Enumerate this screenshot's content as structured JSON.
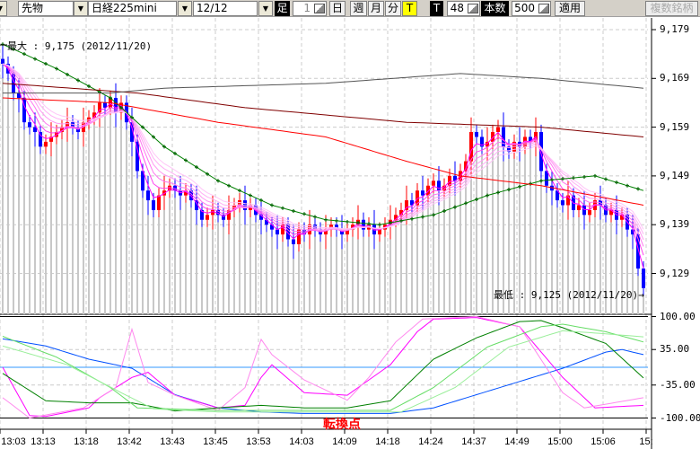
{
  "toolbar": {
    "market": "先物",
    "symbol": "日経225mini",
    "contract": "12/12",
    "bar_label": "足",
    "bar_count": "1",
    "day": "日",
    "week": "週",
    "month": "月",
    "minute": "分",
    "tick": "T",
    "t_label": "T",
    "t_value": "48",
    "count_label": "本数",
    "count_value": "500",
    "apply": "適用",
    "multi": "複数銘柄",
    "tick_active_color": "#ffff00"
  },
  "chart_data": {
    "type": "candlestick",
    "price_axis": {
      "ticks": [
        "9,179",
        "9,169",
        "9,159",
        "9,149",
        "9,139",
        "9,129"
      ],
      "values": [
        9179,
        9169,
        9159,
        9149,
        9139,
        9129
      ]
    },
    "max_label": "最大 : 9,175 (2012/11/20)",
    "min_label": "最低 : 9,125 (2012/11/20)→",
    "time_labels": [
      "13:03",
      "13:13",
      "13:18",
      "13:42",
      "13:43",
      "13:45",
      "13:53",
      "14:03",
      "14:09",
      "14:18",
      "14:24",
      "14:37",
      "14:49",
      "15:00",
      "15:06",
      "15:"
    ],
    "closes": [
      9172,
      9170,
      9166,
      9165,
      9160,
      9159,
      9158,
      9155,
      9156,
      9157,
      9158,
      9159,
      9160,
      9159,
      9158,
      9160,
      9161,
      9162,
      9164,
      9163,
      9165,
      9162,
      9164,
      9160,
      9156,
      9150,
      9146,
      9144,
      9142,
      9145,
      9146,
      9147,
      9146,
      9145,
      9146,
      9144,
      9142,
      9140,
      9141,
      9142,
      9141,
      9140,
      9142,
      9143,
      9144,
      9142,
      9143,
      9141,
      9140,
      9139,
      9138,
      9137,
      9139,
      9136,
      9135,
      9138,
      9137,
      9139,
      9138,
      9137,
      9138,
      9139,
      9138,
      9137,
      9138,
      9139,
      9140,
      9138,
      9139,
      9137,
      9138,
      9139,
      9140,
      9141,
      9142,
      9144,
      9143,
      9146,
      9145,
      9147,
      9148,
      9146,
      9147,
      9149,
      9148,
      9150,
      9152,
      9158,
      9157,
      9155,
      9156,
      9158,
      9159,
      9155,
      9154,
      9156,
      9155,
      9157,
      9156,
      9158,
      9150,
      9147,
      9146,
      9144,
      9143,
      9145,
      9142,
      9143,
      9141,
      9142,
      9144,
      9143,
      9141,
      9142,
      9140,
      9141,
      9138,
      9137,
      9130,
      9126
    ],
    "up_color": "#ff0000",
    "down_color": "#0000ff",
    "averages": [
      {
        "color": "#008000",
        "points": [
          [
            0,
            9176
          ],
          [
            10,
            9171
          ],
          [
            20,
            9165
          ],
          [
            30,
            9155
          ],
          [
            40,
            9148
          ],
          [
            50,
            9143
          ],
          [
            60,
            9140
          ],
          [
            70,
            9139
          ],
          [
            80,
            9141
          ],
          [
            90,
            9145
          ],
          [
            100,
            9148
          ],
          [
            110,
            9149
          ],
          [
            119,
            9146
          ]
        ]
      },
      {
        "color": "#ff0000",
        "points": [
          [
            0,
            9165
          ],
          [
            20,
            9164
          ],
          [
            40,
            9160
          ],
          [
            60,
            9157
          ],
          [
            75,
            9152
          ],
          [
            85,
            9149
          ],
          [
            100,
            9147
          ],
          [
            119,
            9143
          ]
        ]
      },
      {
        "color": "#800000",
        "points": [
          [
            0,
            9168
          ],
          [
            25,
            9166
          ],
          [
            45,
            9163
          ],
          [
            75,
            9160
          ],
          [
            100,
            9159
          ],
          [
            119,
            9157
          ]
        ]
      },
      {
        "color": "#555555",
        "points": [
          [
            0,
            9166
          ],
          [
            20,
            9166
          ],
          [
            30,
            9167
          ],
          [
            60,
            9168
          ],
          [
            85,
            9170
          ],
          [
            100,
            9169
          ],
          [
            119,
            9167
          ]
        ]
      }
    ],
    "ribbon_periods": [
      3,
      5,
      7,
      9,
      11,
      13
    ],
    "oscillator": {
      "ticks": [
        "100.00",
        "35.00",
        "-35.00",
        "-100.00"
      ],
      "values": [
        100,
        35,
        -35,
        -100
      ],
      "signal_label": "転換点",
      "series": [
        {
          "color": "#0050ff",
          "points": [
            [
              0,
              56
            ],
            [
              8,
              42
            ],
            [
              16,
              16
            ],
            [
              24,
              -2
            ],
            [
              32,
              -54
            ],
            [
              40,
              -80
            ],
            [
              48,
              -88
            ],
            [
              56,
              -91
            ],
            [
              72,
              -91
            ],
            [
              80,
              -80
            ],
            [
              88,
              -54
            ],
            [
              96,
              -28
            ],
            [
              104,
              -2
            ],
            [
              112,
              30
            ],
            [
              115,
              35
            ],
            [
              119,
              25
            ]
          ]
        },
        {
          "color": "#ff00ff",
          "points": [
            [
              0,
              0
            ],
            [
              5,
              -95
            ],
            [
              8,
              -97
            ],
            [
              16,
              -80
            ],
            [
              18,
              -60
            ],
            [
              24,
              -20
            ],
            [
              27,
              -10
            ],
            [
              32,
              -55
            ],
            [
              40,
              -80
            ],
            [
              45,
              -75
            ],
            [
              48,
              -20
            ],
            [
              50,
              5
            ],
            [
              56,
              -50
            ],
            [
              64,
              -55
            ],
            [
              72,
              5
            ],
            [
              77,
              70
            ],
            [
              80,
              95
            ],
            [
              88,
              98
            ],
            [
              96,
              80
            ],
            [
              102,
              5
            ],
            [
              104,
              -20
            ],
            [
              110,
              -80
            ],
            [
              119,
              -75
            ]
          ]
        },
        {
          "color": "#ff88ee",
          "points": [
            [
              0,
              -60
            ],
            [
              5,
              -100
            ],
            [
              15,
              -80
            ],
            [
              21,
              -40
            ],
            [
              24,
              75
            ],
            [
              27,
              -30
            ],
            [
              32,
              -55
            ],
            [
              40,
              -85
            ],
            [
              45,
              -40
            ],
            [
              48,
              55
            ],
            [
              50,
              25
            ],
            [
              56,
              -25
            ],
            [
              64,
              -65
            ],
            [
              68,
              -20
            ],
            [
              73,
              50
            ],
            [
              78,
              95
            ],
            [
              88,
              100
            ],
            [
              96,
              80
            ],
            [
              104,
              -50
            ],
            [
              108,
              -80
            ],
            [
              119,
              -60
            ]
          ]
        },
        {
          "color": "#008000",
          "points": [
            [
              0,
              -12
            ],
            [
              8,
              -66
            ],
            [
              16,
              -70
            ],
            [
              24,
              -70
            ],
            [
              32,
              -86
            ],
            [
              40,
              -80
            ],
            [
              48,
              -75
            ],
            [
              56,
              -80
            ],
            [
              64,
              -80
            ],
            [
              72,
              -66
            ],
            [
              80,
              16
            ],
            [
              88,
              58
            ],
            [
              96,
              90
            ],
            [
              100,
              92
            ],
            [
              104,
              78
            ],
            [
              112,
              47
            ],
            [
              119,
              -21
            ]
          ]
        },
        {
          "color": "#66dd66",
          "points": [
            [
              0,
              61
            ],
            [
              10,
              20
            ],
            [
              20,
              -40
            ],
            [
              25,
              -80
            ],
            [
              40,
              -85
            ],
            [
              72,
              -85
            ],
            [
              80,
              -40
            ],
            [
              90,
              40
            ],
            [
              100,
              80
            ],
            [
              104,
              85
            ],
            [
              112,
              70
            ],
            [
              119,
              50
            ]
          ]
        },
        {
          "color": "#99ee99",
          "points": [
            [
              0,
              42
            ],
            [
              12,
              5
            ],
            [
              22,
              -50
            ],
            [
              28,
              -82
            ],
            [
              40,
              -88
            ],
            [
              74,
              -88
            ],
            [
              84,
              -40
            ],
            [
              94,
              40
            ],
            [
              104,
              72
            ],
            [
              112,
              66
            ],
            [
              119,
              60
            ]
          ]
        }
      ]
    }
  }
}
